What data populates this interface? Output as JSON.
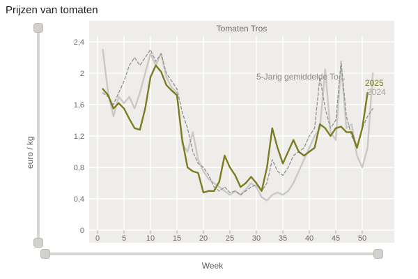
{
  "page_title": "Prijzen van tomaten",
  "chart": {
    "title": "Tomaten Tros",
    "y_axis_label": "euro / kg",
    "x_axis_label": "Week",
    "annotation": "5-Jarig gemiddelde To...",
    "legend": {
      "s2025": "2025",
      "s2024": "2024"
    }
  },
  "colors": {
    "panel_bg": "#efedea",
    "grid": "#ffffff",
    "tick": "#b5b2ae",
    "tick_text": "#6e6a66",
    "series_2024": "#cbc9c6",
    "series_avg": "#8f8f8f",
    "series_2025": "#7b7b22"
  },
  "chart_data": {
    "type": "line",
    "title": "Tomaten Tros",
    "xlabel": "Week",
    "ylabel": "euro / kg",
    "xlim": [
      0,
      53
    ],
    "ylim": [
      0,
      2.4
    ],
    "grid": true,
    "x_ticks": [
      0,
      5,
      10,
      15,
      20,
      25,
      30,
      35,
      40,
      45,
      50
    ],
    "y_tick_values": [
      0,
      0.4,
      0.8,
      1.2,
      1.6,
      2,
      2.4
    ],
    "y_tick_labels": [
      "0",
      "0,4",
      "0,8",
      "1,2",
      "1,6",
      "2",
      "2,4"
    ],
    "x_start_week": 1,
    "series": [
      {
        "name": "2024",
        "color": "#cbc9c6",
        "width": 2.4,
        "dash": "",
        "values": [
          2.3,
          1.75,
          1.45,
          1.7,
          1.62,
          1.7,
          1.55,
          1.75,
          2.0,
          2.25,
          2.1,
          2.25,
          1.95,
          1.82,
          1.75,
          1.1,
          1.0,
          1.25,
          0.9,
          0.75,
          0.65,
          0.6,
          0.55,
          0.5,
          0.45,
          0.5,
          0.45,
          0.52,
          0.6,
          0.55,
          0.42,
          0.38,
          0.45,
          0.48,
          0.45,
          0.5,
          0.6,
          0.75,
          0.9,
          1.05,
          1.2,
          1.3,
          2.05,
          1.25,
          1.15,
          2.1,
          1.3,
          1.35,
          0.95,
          0.8,
          1.05,
          2.0
        ]
      },
      {
        "name": "5-Jarig gemiddelde Tomaten Tros",
        "color": "#8f8f8f",
        "width": 1.3,
        "dash": "4 3",
        "values": [
          1.75,
          1.7,
          1.6,
          1.75,
          1.9,
          2.1,
          2.2,
          2.1,
          2.2,
          2.3,
          2.15,
          2.25,
          2.0,
          1.9,
          1.8,
          1.5,
          1.3,
          1.0,
          0.85,
          0.8,
          0.7,
          0.55,
          0.5,
          0.55,
          0.48,
          0.5,
          0.45,
          0.5,
          0.55,
          0.58,
          0.5,
          0.6,
          0.9,
          0.75,
          0.7,
          0.8,
          0.95,
          1.0,
          1.05,
          1.2,
          1.3,
          1.95,
          1.55,
          1.3,
          1.4,
          2.15,
          1.45,
          1.2,
          1.05,
          1.3,
          1.45,
          1.55
        ]
      },
      {
        "name": "2025",
        "color": "#7b7b22",
        "width": 2.4,
        "dash": "",
        "values": [
          1.8,
          1.72,
          1.55,
          1.62,
          1.55,
          1.42,
          1.3,
          1.28,
          1.55,
          1.95,
          2.1,
          2.02,
          1.85,
          1.78,
          1.72,
          1.15,
          0.8,
          0.75,
          0.73,
          0.48,
          0.5,
          0.5,
          0.62,
          0.95,
          0.8,
          0.7,
          0.55,
          0.6,
          0.68,
          0.6,
          0.5,
          0.8,
          1.3,
          1.05,
          0.85,
          1.0,
          1.15,
          1.0,
          0.95,
          1.0,
          1.05,
          1.35,
          1.3,
          1.2,
          1.3,
          1.32,
          1.25,
          1.25,
          1.05,
          1.3,
          1.75
        ]
      }
    ]
  }
}
